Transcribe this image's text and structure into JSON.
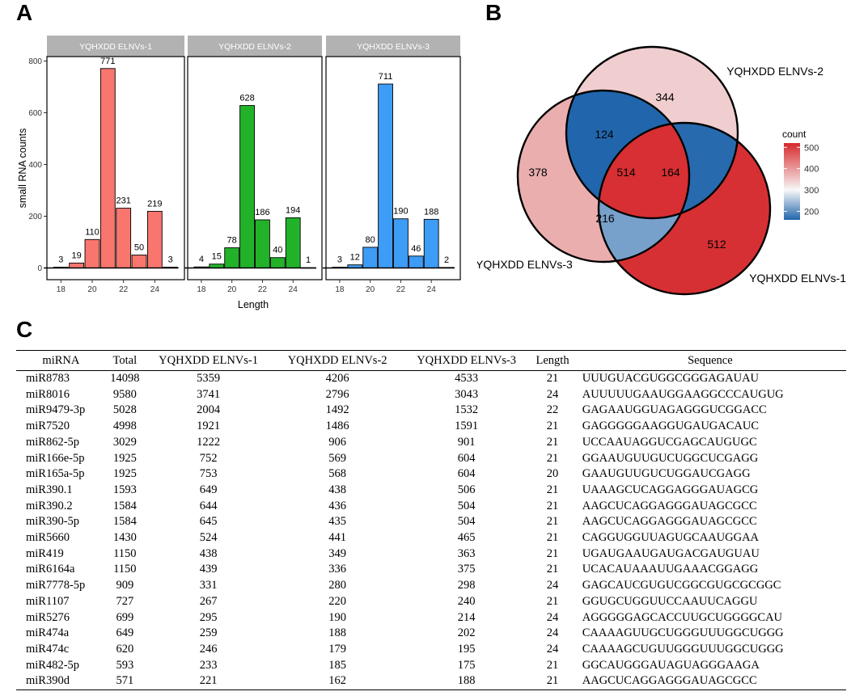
{
  "panels": {
    "a": "A",
    "b": "B",
    "c": "C"
  },
  "chart_data": [
    {
      "type": "bar",
      "ylabel": "small RNA counts",
      "xlabel": "Length",
      "ylim": [
        0,
        800
      ],
      "yticks": [
        0,
        200,
        400,
        600,
        800
      ],
      "xticks": [
        18,
        20,
        22,
        24
      ],
      "x": [
        18,
        19,
        20,
        21,
        22,
        23,
        24,
        25
      ],
      "series": [
        {
          "name": "YQHXDD ELNVs-1",
          "color": "#f8766d",
          "values": [
            3,
            19,
            110,
            771,
            231,
            50,
            219,
            3
          ]
        },
        {
          "name": "YQHXDD ELNVs-2",
          "color": "#22b22a",
          "values": [
            4,
            15,
            78,
            628,
            186,
            40,
            194,
            1
          ]
        },
        {
          "name": "YQHXDD ELNVs-3",
          "color": "#3d9cf5",
          "values": [
            3,
            12,
            80,
            711,
            190,
            46,
            188,
            2
          ]
        }
      ]
    },
    {
      "type": "venn",
      "sets": [
        "YQHXDD ELNVs-1",
        "YQHXDD ELNVs-2",
        "YQHXDD ELNVs-3"
      ],
      "regions": {
        "only_1": 512,
        "only_2": 344,
        "only_3": 378,
        "1_2": 164,
        "2_3": 124,
        "1_3": 216,
        "1_2_3": 514
      },
      "legend": {
        "title": "count",
        "ticks": [
          200,
          300,
          400,
          500
        ],
        "position": "right"
      }
    }
  ],
  "table": {
    "columns": [
      "miRNA",
      "Total",
      "YQHXDD ELNVs-1",
      "YQHXDD ELNVs-2",
      "YQHXDD ELNVs-3",
      "Length",
      "Sequence"
    ],
    "rows": [
      [
        "miR8783",
        "14098",
        "5359",
        "4206",
        "4533",
        "21",
        "UUUGUACGUGGCGGGAGAUAU"
      ],
      [
        "miR8016",
        "9580",
        "3741",
        "2796",
        "3043",
        "24",
        "AUUUUUGAAUGGAAGGCCCAUGUG"
      ],
      [
        "miR9479-3p",
        "5028",
        "2004",
        "1492",
        "1532",
        "22",
        "GAGAAUGGUAGAGGGUCGGACC"
      ],
      [
        "miR7520",
        "4998",
        "1921",
        "1486",
        "1591",
        "21",
        "GAGGGGGAAGGUGAUGACAUC"
      ],
      [
        "miR862-5p",
        "3029",
        "1222",
        "906",
        "901",
        "21",
        "UCCAAUAGGUCGAGCAUGUGC"
      ],
      [
        "miR166e-5p",
        "1925",
        "752",
        "569",
        "604",
        "21",
        "GGAAUGUUGUCUGGCUCGAGG"
      ],
      [
        "miR165a-5p",
        "1925",
        "753",
        "568",
        "604",
        "20",
        "GAAUGUUGUCUGGAUCGAGG"
      ],
      [
        "miR390.1",
        "1593",
        "649",
        "438",
        "506",
        "21",
        "UAAAGCUCAGGAGGGAUAGCG"
      ],
      [
        "miR390.2",
        "1584",
        "644",
        "436",
        "504",
        "21",
        "AAGCUCAGGAGGGAUAGCGCC"
      ],
      [
        "miR390-5p",
        "1584",
        "645",
        "435",
        "504",
        "21",
        "AAGCUCAGGAGGGAUAGCGCC"
      ],
      [
        "miR5660",
        "1430",
        "524",
        "441",
        "465",
        "21",
        "CAGGUGGUUAGUGCAAUGGAA"
      ],
      [
        "miR419",
        "1150",
        "438",
        "349",
        "363",
        "21",
        "UGAUGAAUGAUGACGAUGUAU"
      ],
      [
        "miR6164a",
        "1150",
        "439",
        "336",
        "375",
        "21",
        "UCACAUAAAUUGAAACGGAGG"
      ],
      [
        "miR7778-5p",
        "909",
        "331",
        "280",
        "298",
        "24",
        "GAGCAUCGUGUCGGCGUGCGCGGC"
      ],
      [
        "miR1107",
        "727",
        "267",
        "220",
        "240",
        "21",
        "GGUGCUGGUUCCAAUUCAGGU"
      ],
      [
        "miR5276",
        "699",
        "295",
        "190",
        "214",
        "24",
        "AGGGGGAGCACCUUGCUGGGGCAU"
      ],
      [
        "miR474a",
        "649",
        "259",
        "188",
        "202",
        "24",
        "CAAAAGUUGCUGGGUUUGGCUGGG"
      ],
      [
        "miR474c",
        "620",
        "246",
        "179",
        "195",
        "24",
        "CAAAAGCUGUUGGGUUUGGCUGGG"
      ],
      [
        "miR482-5p",
        "593",
        "233",
        "185",
        "175",
        "21",
        "GGCAUGGGAUAGUAGGGAAGA"
      ],
      [
        "miR390d",
        "571",
        "221",
        "162",
        "188",
        "21",
        "AAGCUCAGGAGGGAUAGCGCC"
      ]
    ]
  }
}
